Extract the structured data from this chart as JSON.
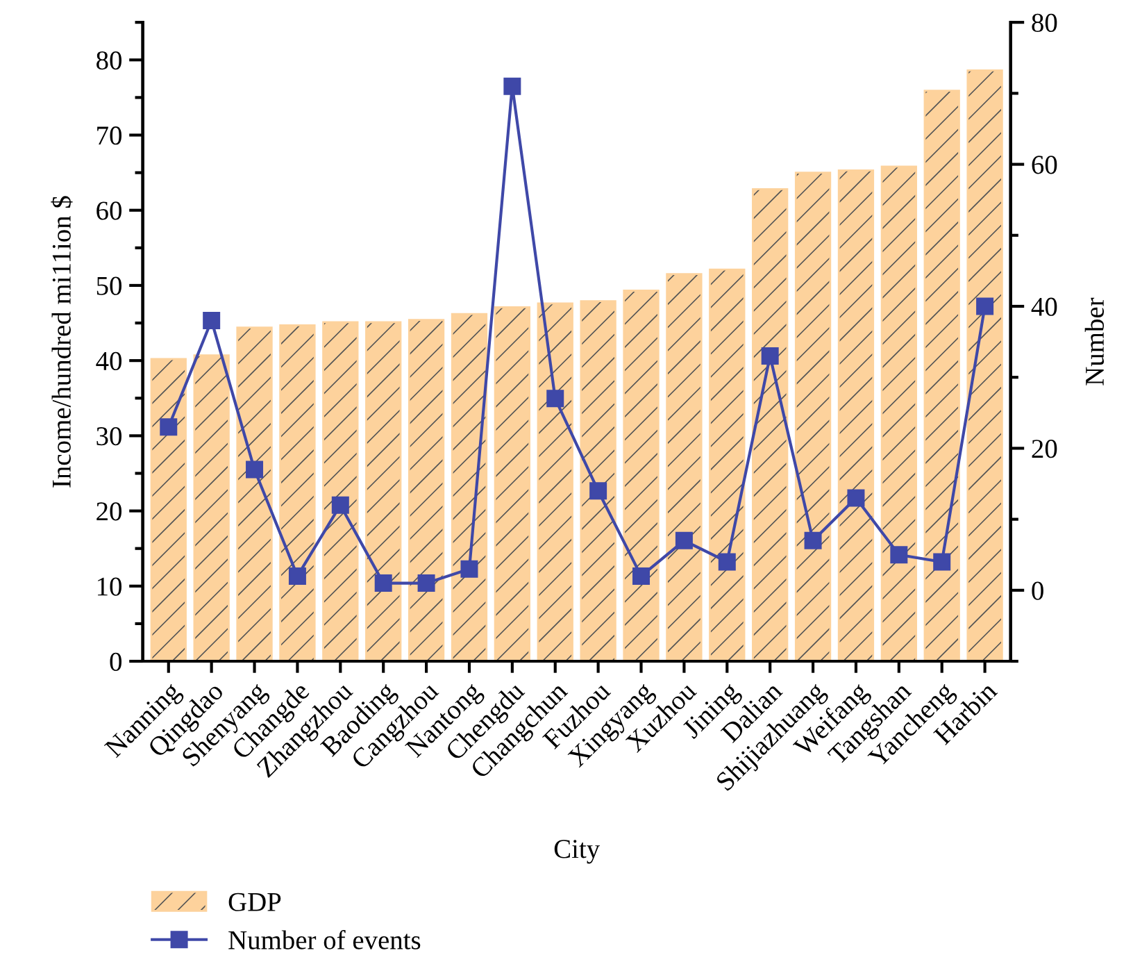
{
  "chart_data": {
    "type": "bar",
    "xlabel": "City",
    "ylabel": "Income/hundred mi11ion $",
    "y2label": "Number",
    "categories": [
      "Nanning",
      "Qingdao",
      "Shenyang",
      "Changde",
      "Zhangzhou",
      "Baoding",
      "Cangzhou",
      "Nantong",
      "Chengdu",
      "Changchun",
      "Fuzhou",
      "Xingyang",
      "Xuzhou",
      "Jining",
      "Dalian",
      "Shijiazhuang",
      "Weifang",
      "Tangshan",
      "Yancheng",
      "Harbin"
    ],
    "series": [
      {
        "name": "GDP",
        "color": "#fdd29c",
        "values": [
          40.2,
          40.7,
          44.4,
          44.7,
          45.1,
          45.1,
          45.4,
          46.2,
          47.1,
          47.6,
          47.9,
          49.3,
          51.5,
          52.1,
          62.8,
          65.0,
          65.3,
          65.8,
          75.9,
          78.6
        ]
      },
      {
        "name": "Number of events",
        "type": "line",
        "axis": "y2",
        "color": "#3f48a8",
        "marker": "square",
        "values": [
          23,
          38,
          17,
          2,
          12,
          1,
          1,
          3,
          71,
          27,
          14,
          2,
          7,
          4,
          33,
          7,
          13,
          5,
          4,
          40
        ]
      }
    ],
    "ylim": [
      0,
      85
    ],
    "yticks": [
      0,
      10,
      20,
      30,
      40,
      50,
      60,
      70,
      80
    ],
    "y2lim": [
      -10,
      80
    ],
    "y2ticks": [
      0,
      20,
      40,
      60,
      80
    ],
    "legend": "bottom",
    "grid": false
  }
}
